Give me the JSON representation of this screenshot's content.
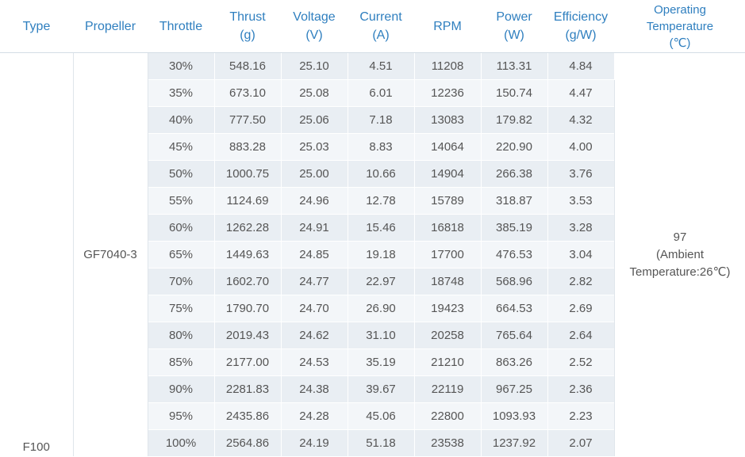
{
  "headers": {
    "type": "Type",
    "propeller": "Propeller",
    "throttle": "Throttle",
    "thrust": [
      "Thrust",
      "(g)"
    ],
    "voltage": [
      "Voltage",
      "(V)"
    ],
    "current": [
      "Current",
      "(A)"
    ],
    "rpm": "RPM",
    "power": [
      "Power",
      "(W)"
    ],
    "efficiency": [
      "Efficiency",
      "(g/W)"
    ],
    "temperature": [
      "Operating",
      "Temperature",
      "(℃)"
    ]
  },
  "type": "F100",
  "propeller": "GF7040-3",
  "temperature": [
    "97",
    "(Ambient",
    "Temperature:26℃)"
  ],
  "rows": [
    {
      "throttle": "30%",
      "thrust": "548.16",
      "voltage": "25.10",
      "current": "4.51",
      "rpm": "11208",
      "power": "113.31",
      "efficiency": "4.84"
    },
    {
      "throttle": "35%",
      "thrust": "673.10",
      "voltage": "25.08",
      "current": "6.01",
      "rpm": "12236",
      "power": "150.74",
      "efficiency": "4.47"
    },
    {
      "throttle": "40%",
      "thrust": "777.50",
      "voltage": "25.06",
      "current": "7.18",
      "rpm": "13083",
      "power": "179.82",
      "efficiency": "4.32"
    },
    {
      "throttle": "45%",
      "thrust": "883.28",
      "voltage": "25.03",
      "current": "8.83",
      "rpm": "14064",
      "power": "220.90",
      "efficiency": "4.00"
    },
    {
      "throttle": "50%",
      "thrust": "1000.75",
      "voltage": "25.00",
      "current": "10.66",
      "rpm": "14904",
      "power": "266.38",
      "efficiency": "3.76"
    },
    {
      "throttle": "55%",
      "thrust": "1124.69",
      "voltage": "24.96",
      "current": "12.78",
      "rpm": "15789",
      "power": "318.87",
      "efficiency": "3.53"
    },
    {
      "throttle": "60%",
      "thrust": "1262.28",
      "voltage": "24.91",
      "current": "15.46",
      "rpm": "16818",
      "power": "385.19",
      "efficiency": "3.28"
    },
    {
      "throttle": "65%",
      "thrust": "1449.63",
      "voltage": "24.85",
      "current": "19.18",
      "rpm": "17700",
      "power": "476.53",
      "efficiency": "3.04"
    },
    {
      "throttle": "70%",
      "thrust": "1602.70",
      "voltage": "24.77",
      "current": "22.97",
      "rpm": "18748",
      "power": "568.96",
      "efficiency": "2.82"
    },
    {
      "throttle": "75%",
      "thrust": "1790.70",
      "voltage": "24.70",
      "current": "26.90",
      "rpm": "19423",
      "power": "664.53",
      "efficiency": "2.69"
    },
    {
      "throttle": "80%",
      "thrust": "2019.43",
      "voltage": "24.62",
      "current": "31.10",
      "rpm": "20258",
      "power": "765.64",
      "efficiency": "2.64"
    },
    {
      "throttle": "85%",
      "thrust": "2177.00",
      "voltage": "24.53",
      "current": "35.19",
      "rpm": "21210",
      "power": "863.26",
      "efficiency": "2.52"
    },
    {
      "throttle": "90%",
      "thrust": "2281.83",
      "voltage": "24.38",
      "current": "39.67",
      "rpm": "22119",
      "power": "967.25",
      "efficiency": "2.36"
    },
    {
      "throttle": "95%",
      "thrust": "2435.86",
      "voltage": "24.28",
      "current": "45.06",
      "rpm": "22800",
      "power": "1093.93",
      "efficiency": "2.23"
    },
    {
      "throttle": "100%",
      "thrust": "2564.86",
      "voltage": "24.19",
      "current": "51.18",
      "rpm": "23538",
      "power": "1237.92",
      "efficiency": "2.07"
    }
  ],
  "colors": {
    "header_text": "#2f7fbf",
    "body_text": "#555555",
    "row_odd": "#e9eef3",
    "row_even": "#f3f6f9"
  }
}
